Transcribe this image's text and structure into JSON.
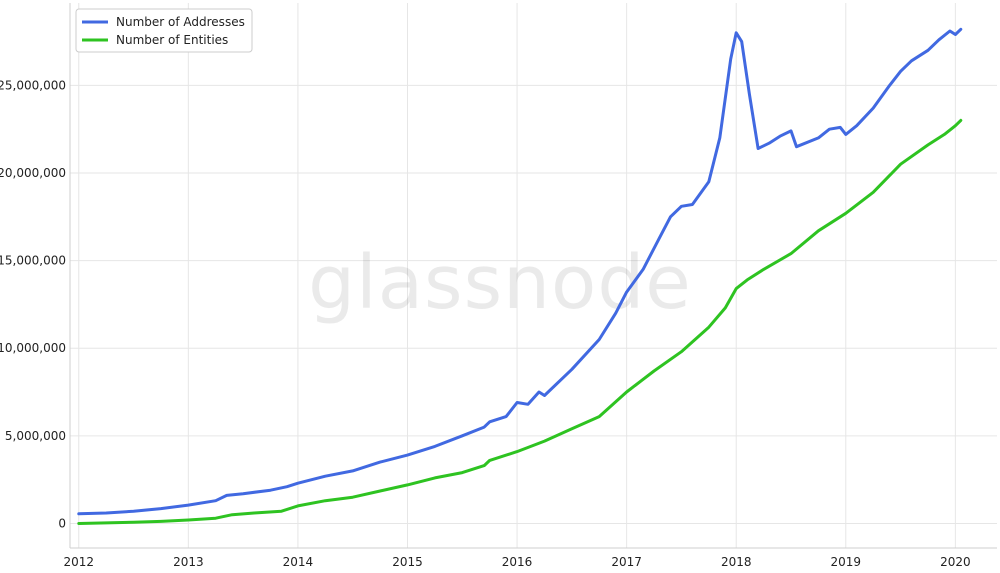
{
  "watermark": "glassnode",
  "chart_data": {
    "type": "line",
    "title": "",
    "xlabel": "",
    "ylabel": "",
    "xlim": [
      2011.92,
      2020.38
    ],
    "ylim": [
      -1400000,
      29700000
    ],
    "x_ticks": [
      2012,
      2013,
      2014,
      2015,
      2016,
      2017,
      2018,
      2019,
      2020
    ],
    "x_tick_labels": [
      "2012",
      "2013",
      "2014",
      "2015",
      "2016",
      "2017",
      "2018",
      "2019",
      "2020"
    ],
    "y_ticks": [
      0,
      5000000,
      10000000,
      15000000,
      20000000,
      25000000
    ],
    "y_tick_labels": [
      "0",
      "5,000,000",
      "10,000,000",
      "15,000,000",
      "20,000,000",
      "25,000,000"
    ],
    "grid": true,
    "legend_position": "top-left",
    "series": [
      {
        "name": "Number of Addresses",
        "color": "#4169e1",
        "points": [
          [
            2012.0,
            550000
          ],
          [
            2012.25,
            600000
          ],
          [
            2012.5,
            700000
          ],
          [
            2012.75,
            850000
          ],
          [
            2013.0,
            1050000
          ],
          [
            2013.25,
            1300000
          ],
          [
            2013.35,
            1600000
          ],
          [
            2013.5,
            1700000
          ],
          [
            2013.75,
            1900000
          ],
          [
            2013.9,
            2100000
          ],
          [
            2014.0,
            2300000
          ],
          [
            2014.25,
            2700000
          ],
          [
            2014.5,
            3000000
          ],
          [
            2014.75,
            3500000
          ],
          [
            2015.0,
            3900000
          ],
          [
            2015.25,
            4400000
          ],
          [
            2015.5,
            5000000
          ],
          [
            2015.7,
            5500000
          ],
          [
            2015.75,
            5800000
          ],
          [
            2015.9,
            6100000
          ],
          [
            2016.0,
            6900000
          ],
          [
            2016.1,
            6800000
          ],
          [
            2016.2,
            7500000
          ],
          [
            2016.25,
            7300000
          ],
          [
            2016.4,
            8200000
          ],
          [
            2016.5,
            8800000
          ],
          [
            2016.75,
            10500000
          ],
          [
            2016.9,
            12000000
          ],
          [
            2017.0,
            13200000
          ],
          [
            2017.15,
            14500000
          ],
          [
            2017.3,
            16300000
          ],
          [
            2017.4,
            17500000
          ],
          [
            2017.5,
            18100000
          ],
          [
            2017.6,
            18200000
          ],
          [
            2017.75,
            19500000
          ],
          [
            2017.85,
            22000000
          ],
          [
            2017.95,
            26500000
          ],
          [
            2018.0,
            28000000
          ],
          [
            2018.05,
            27500000
          ],
          [
            2018.12,
            24500000
          ],
          [
            2018.2,
            21400000
          ],
          [
            2018.3,
            21700000
          ],
          [
            2018.4,
            22100000
          ],
          [
            2018.5,
            22400000
          ],
          [
            2018.55,
            21500000
          ],
          [
            2018.75,
            22000000
          ],
          [
            2018.85,
            22500000
          ],
          [
            2018.95,
            22600000
          ],
          [
            2019.0,
            22200000
          ],
          [
            2019.1,
            22700000
          ],
          [
            2019.25,
            23700000
          ],
          [
            2019.4,
            25000000
          ],
          [
            2019.5,
            25800000
          ],
          [
            2019.6,
            26400000
          ],
          [
            2019.75,
            27000000
          ],
          [
            2019.85,
            27600000
          ],
          [
            2019.95,
            28100000
          ],
          [
            2020.0,
            27900000
          ],
          [
            2020.05,
            28200000
          ]
        ]
      },
      {
        "name": "Number of Entities",
        "color": "#2ec321",
        "points": [
          [
            2012.0,
            0
          ],
          [
            2012.25,
            30000
          ],
          [
            2012.5,
            70000
          ],
          [
            2012.75,
            120000
          ],
          [
            2013.0,
            200000
          ],
          [
            2013.25,
            300000
          ],
          [
            2013.4,
            500000
          ],
          [
            2013.6,
            600000
          ],
          [
            2013.85,
            700000
          ],
          [
            2014.0,
            1000000
          ],
          [
            2014.25,
            1300000
          ],
          [
            2014.5,
            1500000
          ],
          [
            2014.75,
            1850000
          ],
          [
            2015.0,
            2200000
          ],
          [
            2015.25,
            2600000
          ],
          [
            2015.5,
            2900000
          ],
          [
            2015.7,
            3300000
          ],
          [
            2015.75,
            3600000
          ],
          [
            2016.0,
            4100000
          ],
          [
            2016.25,
            4700000
          ],
          [
            2016.5,
            5400000
          ],
          [
            2016.75,
            6100000
          ],
          [
            2017.0,
            7500000
          ],
          [
            2017.25,
            8700000
          ],
          [
            2017.5,
            9800000
          ],
          [
            2017.75,
            11200000
          ],
          [
            2017.9,
            12300000
          ],
          [
            2018.0,
            13400000
          ],
          [
            2018.1,
            13900000
          ],
          [
            2018.25,
            14500000
          ],
          [
            2018.5,
            15400000
          ],
          [
            2018.75,
            16700000
          ],
          [
            2019.0,
            17700000
          ],
          [
            2019.25,
            18900000
          ],
          [
            2019.5,
            20500000
          ],
          [
            2019.75,
            21600000
          ],
          [
            2019.9,
            22200000
          ],
          [
            2020.0,
            22700000
          ],
          [
            2020.05,
            23000000
          ]
        ]
      }
    ]
  }
}
